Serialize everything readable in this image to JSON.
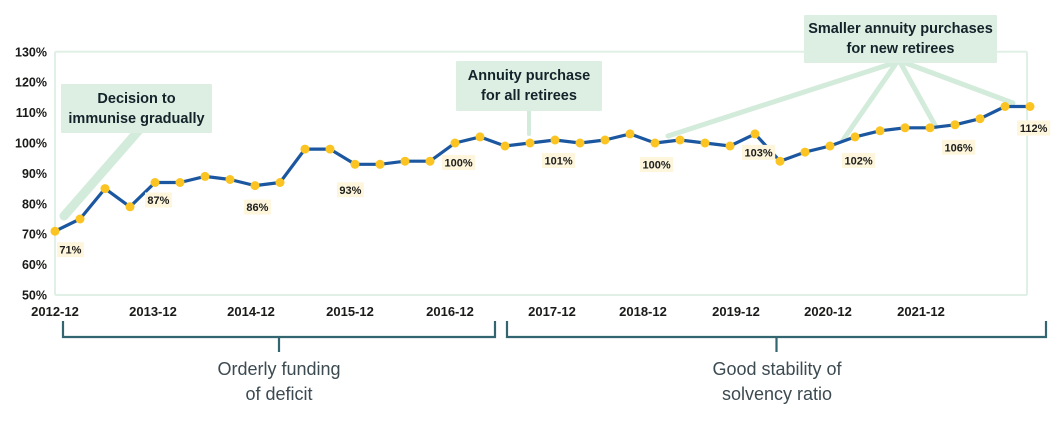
{
  "chart_data": {
    "type": "line",
    "series_name": "Solvency ratio",
    "x": [
      "2012-12",
      "2013-03",
      "2013-06",
      "2013-09",
      "2013-12",
      "2014-03",
      "2014-06",
      "2014-09",
      "2014-12",
      "2015-03",
      "2015-06",
      "2015-09",
      "2015-12",
      "2016-03",
      "2016-06",
      "2016-09",
      "2016-12",
      "2017-03",
      "2017-06",
      "2017-09",
      "2017-12",
      "2018-03",
      "2018-06",
      "2018-09",
      "2018-12",
      "2019-03",
      "2019-06",
      "2019-09",
      "2019-12",
      "2020-03",
      "2020-06",
      "2020-09",
      "2020-12",
      "2021-03",
      "2021-06",
      "2021-09",
      "2021-12",
      "2022-03",
      "2022-06",
      "2022-09"
    ],
    "values": [
      71,
      75,
      85,
      79,
      87,
      87,
      89,
      88,
      86,
      87,
      98,
      98,
      93,
      93,
      94,
      94,
      100,
      102,
      99,
      100,
      101,
      100,
      101,
      103,
      100,
      101,
      100,
      99,
      103,
      94,
      97,
      99,
      102,
      104,
      105,
      105,
      106,
      108,
      112,
      112
    ],
    "y_ticks": [
      "130%",
      "120%",
      "110%",
      "100%",
      "90%",
      "80%",
      "70%",
      "60%",
      "50%"
    ],
    "x_tick_labels": [
      "2012-12",
      "2013-12",
      "2014-12",
      "2015-12",
      "2016-12",
      "2017-12",
      "2018-12",
      "2019-12",
      "2020-12",
      "2021-12"
    ],
    "ylim": [
      50,
      130
    ],
    "legend": "none",
    "grid": "top-frame-only",
    "point_labels": [
      {
        "index": 0,
        "text": "71%"
      },
      {
        "index": 4,
        "text": "87%"
      },
      {
        "index": 8,
        "text": "86%"
      },
      {
        "index": 12,
        "text": "93%"
      },
      {
        "index": 16,
        "text": "100%"
      },
      {
        "index": 20,
        "text": "101%"
      },
      {
        "index": 24,
        "text": "100%"
      },
      {
        "index": 28,
        "text": "103%"
      },
      {
        "index": 32,
        "text": "102%"
      },
      {
        "index": 36,
        "text": "106%"
      },
      {
        "index": 39,
        "text": "112%"
      }
    ],
    "colors": {
      "line": "#1b57a0",
      "marker": "#fbc422",
      "point_label_bg": "#fdf6dd",
      "point_label_text": "#1d1d1b",
      "callout_bg": "#ddefe3",
      "connector": "#d3ebda",
      "frame": "#e0f0e6",
      "axis_text": "#1a1a18",
      "bracket": "#336571"
    }
  },
  "annotations": {
    "callouts": [
      {
        "text": "Decision to\nimmunise gradually"
      },
      {
        "text": "Annuity purchase\nfor all retirees"
      },
      {
        "text": "Smaller annuity purchases\nfor new retirees"
      }
    ]
  },
  "brackets": [
    {
      "label": "Orderly funding\nof deficit"
    },
    {
      "label": "Good stability of\nsolvency ratio"
    }
  ]
}
